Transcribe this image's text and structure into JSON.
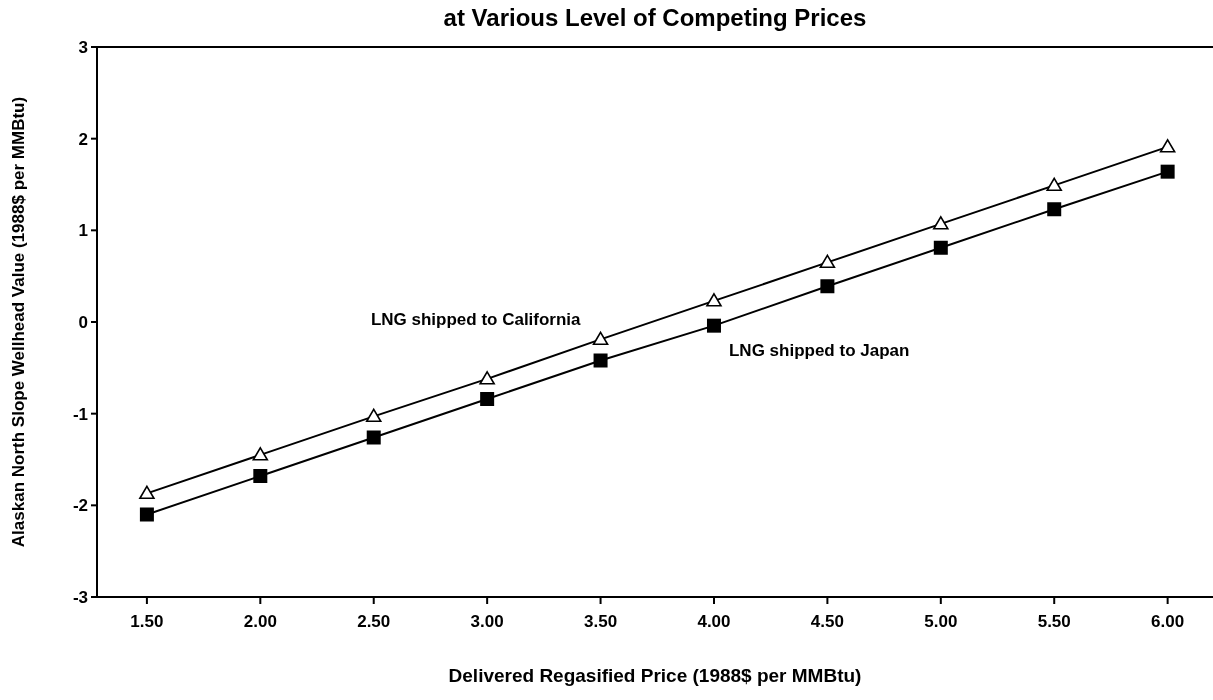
{
  "chart_data": {
    "type": "line",
    "title": "at Various Level of Competing Prices",
    "xlabel": "Delivered Regasified Price (1988$ per MMBtu)",
    "ylabel": "Alaskan North Slope Wellhead Value (1988$ per MMBtu)",
    "x": [
      1.5,
      2.0,
      2.5,
      3.0,
      3.5,
      4.0,
      4.5,
      5.0,
      5.5,
      6.0
    ],
    "series": [
      {
        "name": "LNG shipped to California",
        "color": "#000000",
        "marker": "triangle",
        "values": [
          -1.87,
          -1.45,
          -1.03,
          -0.62,
          -0.19,
          0.23,
          0.65,
          1.07,
          1.49,
          1.91
        ]
      },
      {
        "name": "LNG shipped to Japan",
        "color": "#000000",
        "marker": "square",
        "values": [
          -2.1,
          -1.68,
          -1.26,
          -0.84,
          -0.42,
          -0.04,
          0.39,
          0.81,
          1.23,
          1.64
        ]
      }
    ],
    "xlim": [
      1.28,
      6.2
    ],
    "ylim": [
      -3,
      3
    ],
    "xticks": [
      {
        "value": 1.5,
        "label": "1.50"
      },
      {
        "value": 2.0,
        "label": "2.00"
      },
      {
        "value": 2.5,
        "label": "2.50"
      },
      {
        "value": 3.0,
        "label": "3.00"
      },
      {
        "value": 3.5,
        "label": "3.50"
      },
      {
        "value": 4.0,
        "label": "4.00"
      },
      {
        "value": 4.5,
        "label": "4.50"
      },
      {
        "value": 5.0,
        "label": "5.00"
      },
      {
        "value": 5.5,
        "label": "5.50"
      },
      {
        "value": 6.0,
        "label": "6.00"
      }
    ],
    "yticks": [
      -3,
      -2,
      -1,
      0,
      1,
      2,
      3
    ],
    "grid": false,
    "line_style": "solid"
  }
}
